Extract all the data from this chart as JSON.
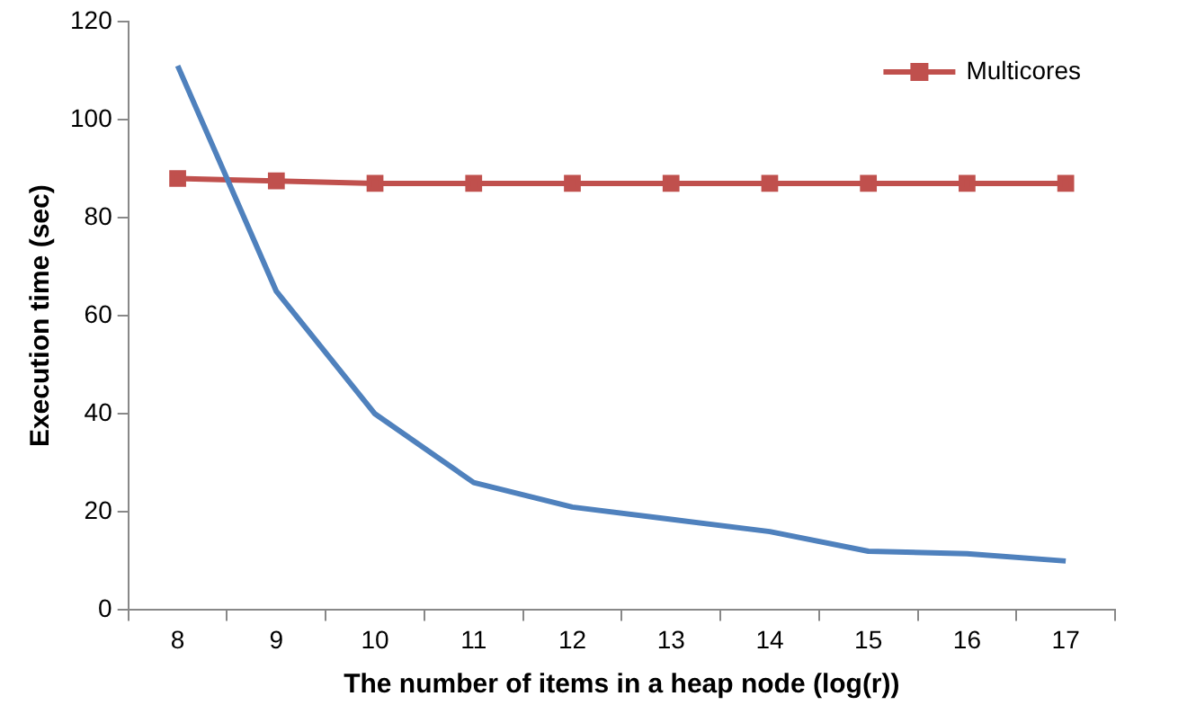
{
  "chart_data": {
    "type": "line",
    "xlabel": "The number of items in a heap node (log(r))",
    "ylabel": "Execution time (sec)",
    "categories": [
      "8",
      "9",
      "10",
      "11",
      "12",
      "13",
      "14",
      "15",
      "16",
      "17"
    ],
    "series": [
      {
        "color": "#4f81bd",
        "marker": "none",
        "values": [
          111,
          65,
          40,
          26,
          21,
          18.5,
          16,
          12,
          11.5,
          10
        ]
      },
      {
        "name": "Multicores",
        "color": "#c0504d",
        "marker": "square",
        "values": [
          88,
          87.5,
          87,
          87,
          87,
          87,
          87,
          87,
          87,
          87
        ]
      }
    ],
    "ylim": [
      0,
      120
    ],
    "yticks": [
      0,
      20,
      40,
      60,
      80,
      100,
      120
    ],
    "grid": false,
    "legend": "top right"
  }
}
